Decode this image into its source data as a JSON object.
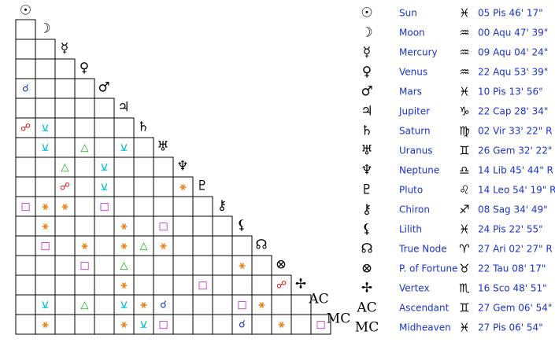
{
  "list": [
    {
      "glyph": "☉",
      "name": "Sun",
      "sign": "♓",
      "position": "05 Pis 46' 17\""
    },
    {
      "glyph": "☽",
      "name": "Moon",
      "sign": "♒",
      "position": "00 Aqu 47' 39\""
    },
    {
      "glyph": "☿",
      "name": "Mercury",
      "sign": "♒",
      "position": "09 Aqu 04' 24\""
    },
    {
      "glyph": "♀",
      "name": "Venus",
      "sign": "♒",
      "position": "22 Aqu 53' 39\""
    },
    {
      "glyph": "♂",
      "name": "Mars",
      "sign": "♓",
      "position": "10 Pis 13' 56\""
    },
    {
      "glyph": "♃",
      "name": "Jupiter",
      "sign": "♑",
      "position": "22 Cap 28' 34\""
    },
    {
      "glyph": "♄",
      "name": "Saturn",
      "sign": "♍",
      "position": "02 Vir 33' 22\" R"
    },
    {
      "glyph": "♅",
      "name": "Uranus",
      "sign": "♊",
      "position": "26 Gem 32' 22\" R"
    },
    {
      "glyph": "♆",
      "name": "Neptune",
      "sign": "♎",
      "position": "14 Lib 45' 44\" R"
    },
    {
      "glyph": "♇",
      "name": "Pluto",
      "sign": "♌",
      "position": "14 Leo 54' 19\" R"
    },
    {
      "glyph": "⚷",
      "name": "Chiron",
      "sign": "♐",
      "position": "08 Sag 34' 49\""
    },
    {
      "glyph": "⚸",
      "name": "Lilith",
      "sign": "♓",
      "position": "24 Pis 22' 55\""
    },
    {
      "glyph": "☊",
      "name": "True Node",
      "sign": "♈",
      "position": "27 Ari 02' 27\" R"
    },
    {
      "glyph": "⊗",
      "name": "P. of Fortune",
      "sign": "♉",
      "position": "22 Tau 08' 17\""
    },
    {
      "glyph": "✢",
      "name": "Vertex",
      "sign": "♏",
      "position": "16 Sco 48' 51\""
    },
    {
      "glyph": "AC",
      "name": "Ascendant",
      "sign": "♊",
      "position": "27 Gem 06' 54\""
    },
    {
      "glyph": "MC",
      "name": "Midheaven",
      "sign": "♓",
      "position": "27 Pis 06' 54\""
    }
  ],
  "grid": {
    "rows": [
      [
        null
      ],
      [
        null,
        null
      ],
      [
        null,
        null,
        null
      ],
      [
        "☌",
        null,
        null,
        null
      ],
      [
        null,
        null,
        null,
        null,
        null
      ],
      [
        "☍",
        "⚺",
        null,
        null,
        null,
        null
      ],
      [
        null,
        "⚺",
        null,
        "△",
        null,
        "⚺",
        null
      ],
      [
        null,
        null,
        "△",
        null,
        "⚺",
        null,
        null,
        null
      ],
      [
        null,
        null,
        "☍",
        null,
        "⚺",
        null,
        null,
        null,
        "⚹"
      ],
      [
        "□",
        "⚹",
        "⚹",
        null,
        "□",
        null,
        null,
        null,
        null,
        null
      ],
      [
        null,
        "⚹",
        null,
        null,
        null,
        "⚹",
        null,
        "□",
        null,
        null,
        null
      ],
      [
        null,
        "□",
        null,
        "⚹",
        null,
        "⚹",
        "△",
        "⚹",
        null,
        null,
        null,
        null
      ],
      [
        null,
        null,
        null,
        "□",
        null,
        "△",
        null,
        null,
        null,
        null,
        null,
        "⚹",
        null
      ],
      [
        null,
        null,
        null,
        null,
        null,
        "⚹",
        null,
        null,
        null,
        "□",
        null,
        null,
        null,
        "☍"
      ],
      [
        null,
        "⚺",
        null,
        "△",
        null,
        "⚺",
        "⚹",
        "☌",
        null,
        null,
        null,
        "□",
        "⚹",
        null,
        null
      ],
      [
        null,
        "⚹",
        null,
        null,
        null,
        "⚹",
        "⚺",
        "□",
        null,
        null,
        null,
        "☌",
        null,
        "⚹",
        null,
        "□"
      ]
    ]
  }
}
